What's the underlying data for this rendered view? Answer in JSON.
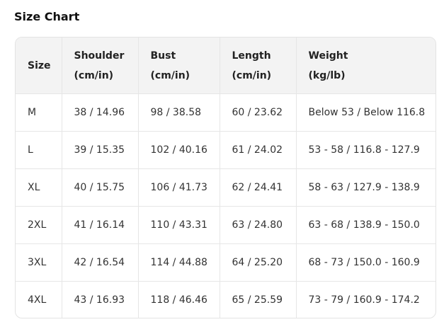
{
  "title": "Size Chart",
  "headers": [
    [
      "Size",
      ""
    ],
    [
      "Shoulder",
      "(cm/in)"
    ],
    [
      "Bust",
      "(cm/in)"
    ],
    [
      "Length",
      "(cm/in)"
    ],
    [
      "Weight",
      "(kg/lb)"
    ]
  ],
  "rows": [
    [
      "M",
      "38 / 14.96",
      "98 / 38.58",
      "60 / 23.62",
      "Below 53 / Below 116.8"
    ],
    [
      "L",
      "39 / 15.35",
      "102 / 40.16",
      "61 / 24.02",
      "53 - 58 / 116.8 - 127.9"
    ],
    [
      "XL",
      "40 / 15.75",
      "106 / 41.73",
      "62 / 24.41",
      "58 - 63 / 127.9 - 138.9"
    ],
    [
      "2XL",
      "41 / 16.14",
      "110 / 43.31",
      "63 / 24.80",
      "63 - 68 / 138.9 - 150.0"
    ],
    [
      "3XL",
      "42 / 16.54",
      "114 / 44.88",
      "64 / 25.20",
      "68 - 73 / 150.0 - 160.9"
    ],
    [
      "4XL",
      "43 / 16.93",
      "118 / 46.46",
      "65 / 25.59",
      "73 - 79 / 160.9 - 174.2"
    ]
  ]
}
